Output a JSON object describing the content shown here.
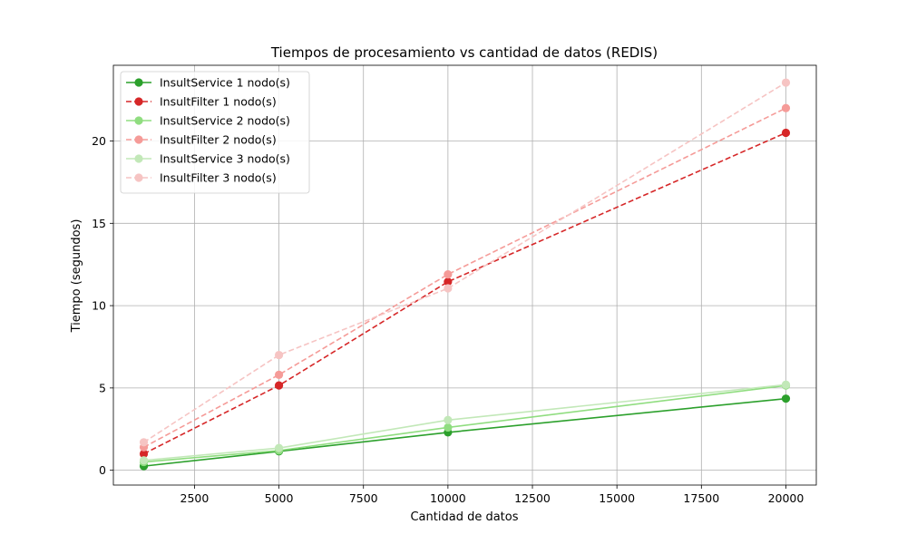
{
  "chart_data": {
    "type": "line",
    "title": "Tiempos de procesamiento vs cantidad de datos (REDIS)",
    "xlabel": "Cantidad de datos",
    "ylabel": "Tiempo (segundos)",
    "x": [
      1000,
      5000,
      10000,
      20000
    ],
    "xlim": [
      100,
      20900
    ],
    "ylim": [
      -0.9,
      24.6
    ],
    "xticks": [
      2500,
      5000,
      7500,
      10000,
      12500,
      15000,
      17500,
      20000
    ],
    "yticks": [
      0,
      5,
      10,
      15,
      20
    ],
    "grid": true,
    "legend_position": "upper-left",
    "series": [
      {
        "name": "InsultService 1 nodo(s)",
        "values": [
          0.25,
          1.15,
          2.3,
          4.35
        ],
        "color": "#2ca02c",
        "dashed": false
      },
      {
        "name": "InsultFilter 1 nodo(s)",
        "values": [
          1.0,
          5.15,
          11.45,
          20.5
        ],
        "color": "#d62728",
        "dashed": true
      },
      {
        "name": "InsultService 2 nodo(s)",
        "values": [
          0.5,
          1.2,
          2.6,
          5.15
        ],
        "color": "#90dd80",
        "dashed": false
      },
      {
        "name": "InsultFilter 2 nodo(s)",
        "values": [
          1.4,
          5.8,
          11.9,
          22.0
        ],
        "color": "#f59b98",
        "dashed": true
      },
      {
        "name": "InsultService 3 nodo(s)",
        "values": [
          0.6,
          1.35,
          3.05,
          5.2
        ],
        "color": "#c2e8b8",
        "dashed": false
      },
      {
        "name": "InsultFilter 3 nodo(s)",
        "values": [
          1.7,
          7.0,
          11.05,
          23.55
        ],
        "color": "#f6c4c3",
        "dashed": true
      }
    ]
  }
}
